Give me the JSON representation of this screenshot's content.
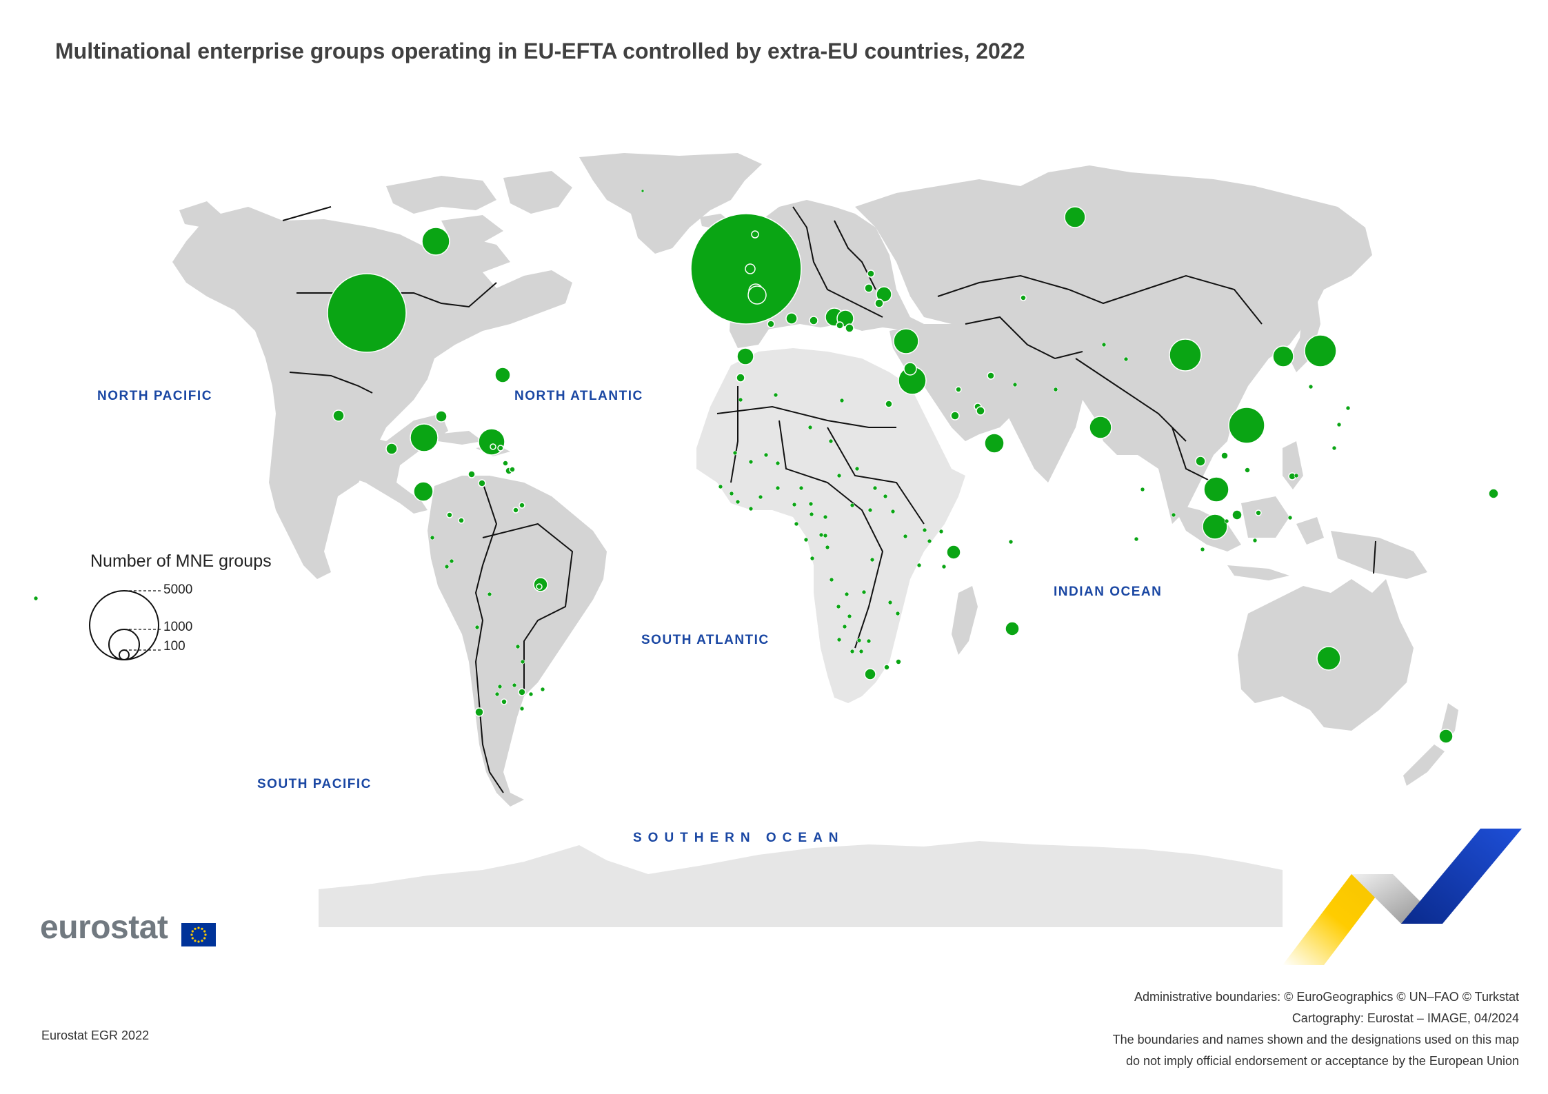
{
  "title": "Multinational enterprise groups operating in EU-EFTA controlled by extra-EU countries, 2022",
  "oceans": {
    "north_pacific": "NORTH PACIFIC",
    "north_atlantic": "NORTH ATLANTIC",
    "south_atlantic": "SOUTH ATLANTIC",
    "indian_ocean": "INDIAN OCEAN",
    "south_pacific": "SOUTH PACIFIC",
    "southern_ocean": "SOUTHERN OCEAN"
  },
  "legend": {
    "title": "Number of MNE groups",
    "values": [
      "5000",
      "1000",
      "100"
    ]
  },
  "colors": {
    "land": "#d4d4d4",
    "land_light": "#e6e6e6",
    "borders": "#111111",
    "symbols": "#0aa514",
    "ocean_label": "#1a47a3"
  },
  "logo": {
    "text": "eurostat"
  },
  "footer": {
    "source": "Eurostat EGR 2022",
    "credits": [
      "Administrative boundaries: © EuroGeographics © UN–FAO © Turkstat",
      "Cartography: Eurostat – IMAGE, 04/2024",
      "The boundaries and names shown and the designations used on this map",
      "do not imply official endorsement or acceptance by the European Union"
    ]
  }
}
